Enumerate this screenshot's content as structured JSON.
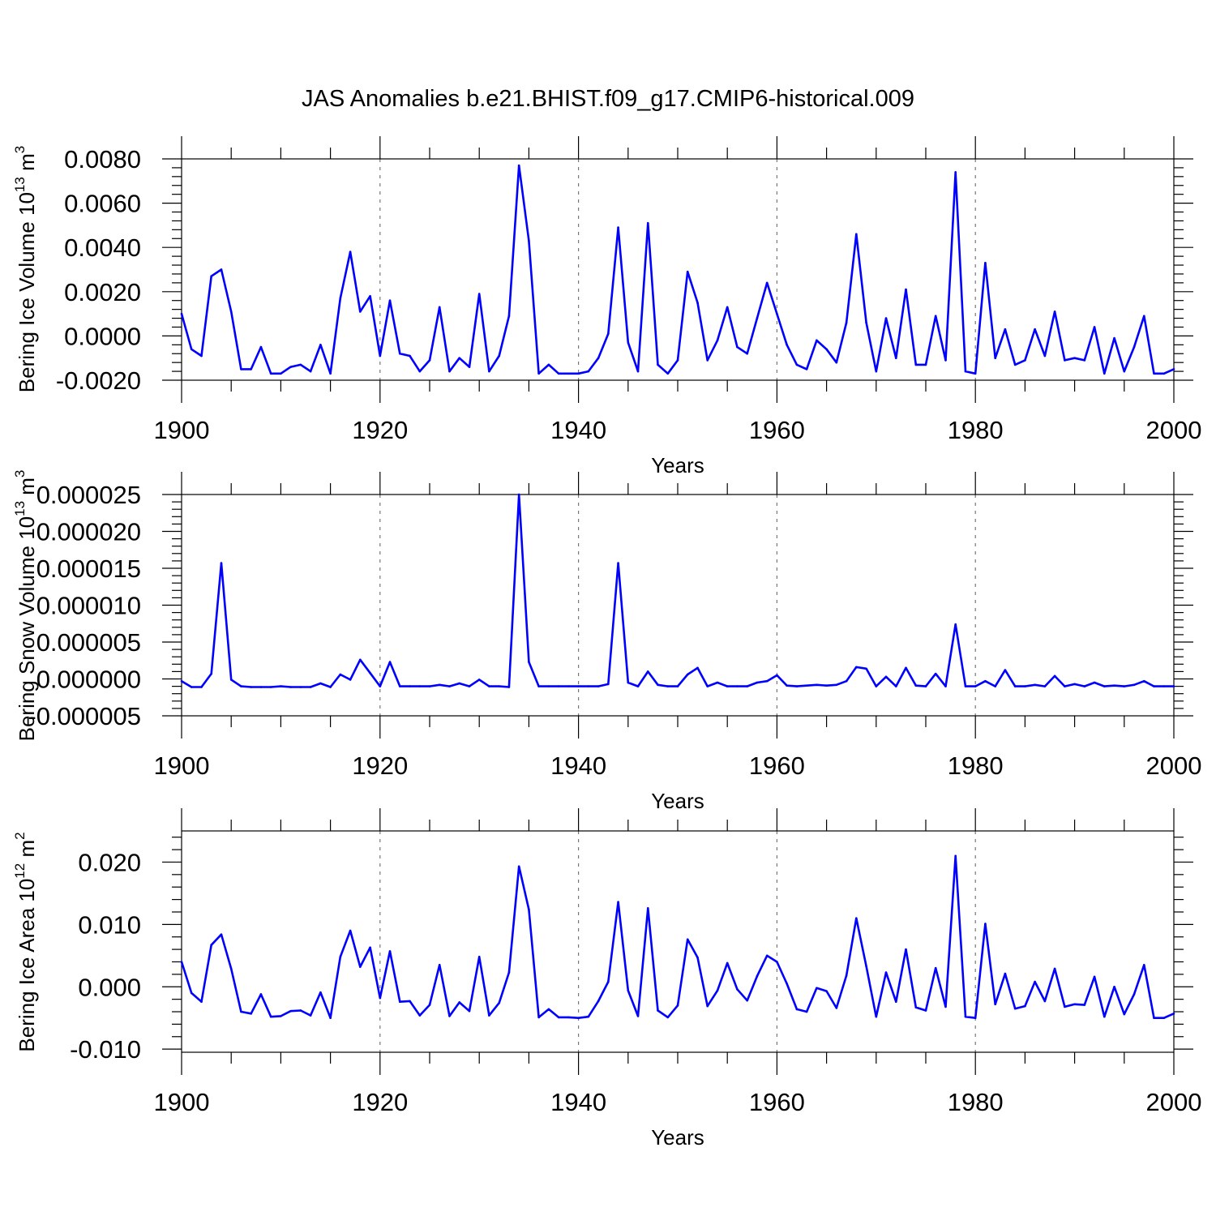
{
  "chart_data": [
    {
      "type": "line",
      "title": "JAS Anomalies b.e21.BHIST.f09_g17.CMIP6-historical.009",
      "xlabel": "Years",
      "ylabel": "Bering Ice Volume 10",
      "ylabel_sup": "13",
      "ylabel_unit": " m",
      "ylabel_unit_sup": "3",
      "xlim": [
        1900,
        2000
      ],
      "ylim": [
        -0.002,
        0.008
      ],
      "xticks": [
        1900,
        1920,
        1940,
        1960,
        1980,
        2000
      ],
      "xtick_labels": [
        "1900",
        "1920",
        "1940",
        "1960",
        "1980",
        "2000"
      ],
      "yticks": [
        -0.002,
        0,
        0.002,
        0.004,
        0.006,
        0.008
      ],
      "ytick_labels": [
        "-0.0020",
        "0.0000",
        "0.0020",
        "0.0040",
        "0.0060",
        "0.0080"
      ],
      "grid_years": [
        1920,
        1940,
        1960,
        1980
      ],
      "series": [
        {
          "name": "Bering Ice Volume",
          "color": "#0000ff",
          "x_start": 1900,
          "values": [
            0.001,
            -0.0006,
            -0.0009,
            0.0027,
            0.003,
            0.0011,
            -0.0015,
            -0.0015,
            -0.0005,
            -0.0017,
            -0.0017,
            -0.0014,
            -0.0013,
            -0.0016,
            -0.0004,
            -0.0017,
            0.0017,
            0.0038,
            0.0011,
            0.0018,
            -0.0009,
            0.0016,
            -0.0008,
            -0.0009,
            -0.0016,
            -0.0011,
            0.0013,
            -0.0016,
            -0.001,
            -0.0014,
            0.0019,
            -0.0016,
            -0.0009,
            0.0009,
            0.0077,
            0.0043,
            -0.0017,
            -0.0013,
            -0.0017,
            -0.0017,
            -0.0017,
            -0.0016,
            -0.001,
            0.0001,
            0.0049,
            -0.0003,
            -0.0016,
            0.0051,
            -0.0013,
            -0.0017,
            -0.0011,
            0.0029,
            0.0015,
            -0.0011,
            -0.0002,
            0.0013,
            -0.0005,
            -0.0008,
            0.0008,
            0.0024,
            0.001,
            -0.0004,
            -0.0013,
            -0.0015,
            -0.0002,
            -0.0006,
            -0.0012,
            0.0006,
            0.0046,
            0.0006,
            -0.0016,
            0.0008,
            -0.001,
            0.0021,
            -0.0013,
            -0.0013,
            0.0009,
            -0.0011,
            0.0074,
            -0.0016,
            -0.0017,
            0.0033,
            -0.001,
            0.0003,
            -0.0013,
            -0.0011,
            0.0003,
            -0.0009,
            0.0011,
            -0.0011,
            -0.001,
            -0.0011,
            0.0004,
            -0.0017,
            -0.0001,
            -0.0016,
            -0.0005,
            0.0009,
            -0.0017,
            -0.0017,
            -0.0015
          ]
        }
      ]
    },
    {
      "type": "line",
      "xlabel": "Years",
      "ylabel": "Bering Snow Volume 10",
      "ylabel_sup": "13",
      "ylabel_unit": " m",
      "ylabel_unit_sup": "3",
      "xlim": [
        1900,
        2000
      ],
      "ylim": [
        -5e-06,
        2.5e-05
      ],
      "xticks": [
        1900,
        1920,
        1940,
        1960,
        1980,
        2000
      ],
      "xtick_labels": [
        "1900",
        "1920",
        "1940",
        "1960",
        "1980",
        "2000"
      ],
      "yticks": [
        -5e-06,
        0,
        5e-06,
        1e-05,
        1.5e-05,
        2e-05,
        2.5e-05
      ],
      "ytick_labels": [
        "-0.000005",
        "0.000000",
        "0.000005",
        "0.000010",
        "0.000015",
        "0.000020",
        "0.000025"
      ],
      "grid_years": [
        1920,
        1940,
        1960,
        1980
      ],
      "series": [
        {
          "name": "Bering Snow Volume",
          "color": "#0000ff",
          "x_start": 1900,
          "values": [
            -3e-07,
            -1.1e-06,
            -1.1e-06,
            7e-07,
            1.57e-05,
            -1e-07,
            -1e-06,
            -1.1e-06,
            -1.1e-06,
            -1.1e-06,
            -1e-06,
            -1.1e-06,
            -1.1e-06,
            -1.1e-06,
            -6e-07,
            -1.1e-06,
            6e-07,
            -1e-07,
            2.6e-06,
            8e-07,
            -1e-06,
            2.3e-06,
            -1e-06,
            -1e-06,
            -1e-06,
            -1e-06,
            -8e-07,
            -1e-06,
            -6e-07,
            -1e-06,
            -1e-07,
            -1e-06,
            -1e-06,
            -1.1e-06,
            2.5e-05,
            2.3e-06,
            -1e-06,
            -1e-06,
            -1e-06,
            -1e-06,
            -1e-06,
            -1e-06,
            -1e-06,
            -7e-07,
            1.57e-05,
            -5e-07,
            -1e-06,
            1e-06,
            -8e-07,
            -1e-06,
            -1e-06,
            6e-07,
            1.5e-06,
            -1e-06,
            -5e-07,
            -1e-06,
            -1e-06,
            -1e-06,
            -5e-07,
            -3e-07,
            5e-07,
            -9e-07,
            -1e-06,
            -9e-07,
            -8e-07,
            -9e-07,
            -8e-07,
            -3e-07,
            1.6e-06,
            1.4e-06,
            -1e-06,
            3e-07,
            -1e-06,
            1.5e-06,
            -9e-07,
            -1e-06,
            7e-07,
            -1e-06,
            7.4e-06,
            -1e-06,
            -1e-06,
            -3e-07,
            -1e-06,
            1.2e-06,
            -1e-06,
            -1e-06,
            -8e-07,
            -1e-06,
            4e-07,
            -1e-06,
            -7e-07,
            -1e-06,
            -5e-07,
            -1e-06,
            -9e-07,
            -1e-06,
            -8e-07,
            -3e-07,
            -1e-06,
            -1e-06,
            -1e-06
          ]
        }
      ]
    },
    {
      "type": "line",
      "xlabel": "Years",
      "ylabel": "Bering Ice Area 10",
      "ylabel_sup": "12",
      "ylabel_unit": " m",
      "ylabel_unit_sup": "2",
      "xlim": [
        1900,
        2000
      ],
      "ylim": [
        -0.0105,
        0.025
      ],
      "xticks": [
        1900,
        1920,
        1940,
        1960,
        1980,
        2000
      ],
      "xtick_labels": [
        "1900",
        "1920",
        "1940",
        "1960",
        "1980",
        "2000"
      ],
      "yticks": [
        -0.01,
        0,
        0.01,
        0.02
      ],
      "ytick_labels": [
        "-0.010",
        "0.000",
        "0.010",
        "0.020"
      ],
      "grid_years": [
        1920,
        1940,
        1960,
        1980
      ],
      "series": [
        {
          "name": "Bering Ice Area",
          "color": "#0000ff",
          "x_start": 1900,
          "values": [
            0.004,
            -0.001,
            -0.0024,
            0.0067,
            0.0084,
            0.0029,
            -0.004,
            -0.0043,
            -0.0012,
            -0.0048,
            -0.0047,
            -0.0039,
            -0.0038,
            -0.0046,
            -0.0009,
            -0.005,
            0.0048,
            0.009,
            0.0032,
            0.0063,
            -0.0018,
            0.0057,
            -0.0024,
            -0.0023,
            -0.0046,
            -0.0029,
            0.0035,
            -0.0047,
            -0.0025,
            -0.0039,
            0.0048,
            -0.0046,
            -0.0026,
            0.0023,
            0.0193,
            0.0124,
            -0.0049,
            -0.0036,
            -0.0049,
            -0.0049,
            -0.005,
            -0.0048,
            -0.0023,
            0.0008,
            0.0136,
            -0.0006,
            -0.0047,
            0.0126,
            -0.0038,
            -0.0049,
            -0.003,
            0.0076,
            0.0047,
            -0.0031,
            -0.0006,
            0.0038,
            -0.0004,
            -0.0022,
            0.0017,
            0.005,
            0.004,
            0.0005,
            -0.0036,
            -0.004,
            -0.0002,
            -0.0007,
            -0.0034,
            0.0018,
            0.011,
            0.0033,
            -0.0048,
            0.0023,
            -0.0024,
            0.006,
            -0.0033,
            -0.0038,
            0.003,
            -0.0032,
            0.021,
            -0.0048,
            -0.005,
            0.0101,
            -0.0028,
            0.0021,
            -0.0035,
            -0.0031,
            0.0008,
            -0.0023,
            0.0029,
            -0.0032,
            -0.0028,
            -0.0029,
            0.0016,
            -0.0048,
            0.0,
            -0.0044,
            -0.0012,
            0.0035,
            -0.005,
            -0.005,
            -0.0043
          ]
        }
      ]
    }
  ]
}
